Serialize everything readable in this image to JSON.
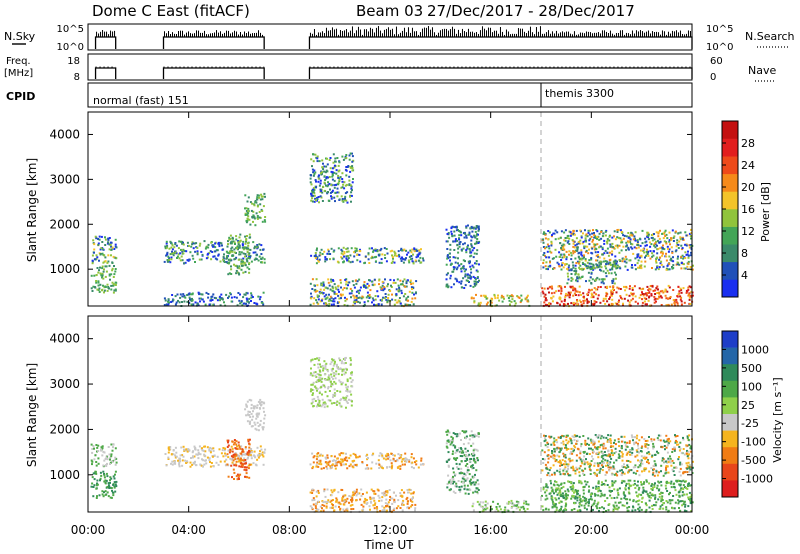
{
  "header": {
    "title": "Dome C East (fitACF)",
    "beam": "Beam 03",
    "date_range": "27/Dec/2017 - 28/Dec/2017"
  },
  "nsky_panel": {
    "left_label": "N.Sky",
    "left_ticks": [
      "10^5",
      "10^0"
    ],
    "right_label": "N.Search",
    "right_ticks": [
      "10^5",
      "10^0"
    ]
  },
  "freq_panel": {
    "left_label_1": "Freq.",
    "left_label_2": "[MHz]",
    "left_ticks": [
      "18",
      "8"
    ],
    "right_label": "Nave",
    "right_ticks": [
      "60",
      "0"
    ]
  },
  "cpid_panel": {
    "label": "CPID",
    "mode1": "normal (fast) 151",
    "mode2": "themis 3300",
    "mode_change_hour": 18.0
  },
  "chart_data": [
    {
      "type": "heatmap",
      "name": "power",
      "ylabel": "Slant Range [km]",
      "xlabel": "Time UT",
      "xlim_hours": [
        0,
        24
      ],
      "ylim": [
        180,
        4500
      ],
      "yticks": [
        "1000",
        "2000",
        "3000",
        "4000"
      ],
      "xticks": [
        "00:00",
        "04:00",
        "08:00",
        "12:00",
        "16:00",
        "20:00",
        "00:00"
      ],
      "colorbar": {
        "label": "Power [dB]",
        "ticks": [
          "4",
          "8",
          "12",
          "16",
          "20",
          "24",
          "28"
        ],
        "colors": [
          "#1a2ff0",
          "#2050b8",
          "#3a8a6a",
          "#43a557",
          "#90c43c",
          "#f3c42a",
          "#f58a1a",
          "#ee4a1a",
          "#e21e1e",
          "#c41010"
        ]
      },
      "scatter_regions": [
        {
          "t": [
            0.1,
            1.1
          ],
          "r": [
            1150,
            1750
          ],
          "palette": [
            0,
            1,
            2,
            3,
            4,
            5
          ]
        },
        {
          "t": [
            0.1,
            1.1
          ],
          "r": [
            500,
            1100
          ],
          "palette": [
            2,
            3,
            4
          ]
        },
        {
          "t": [
            3.0,
            7.0
          ],
          "r": [
            1150,
            1650
          ],
          "palette": [
            0,
            1,
            2,
            3,
            4
          ]
        },
        {
          "t": [
            3.0,
            7.0
          ],
          "r": [
            200,
            500
          ],
          "palette": [
            0,
            1,
            2,
            3
          ]
        },
        {
          "t": [
            6.2,
            7.0
          ],
          "r": [
            2000,
            2700
          ],
          "palette": [
            2,
            3,
            4
          ]
        },
        {
          "t": [
            5.5,
            6.4
          ],
          "r": [
            900,
            1800
          ],
          "palette": [
            2,
            3,
            4
          ]
        },
        {
          "t": [
            8.8,
            10.5
          ],
          "r": [
            2500,
            3600
          ],
          "palette": [
            0,
            1,
            2,
            3,
            4
          ]
        },
        {
          "t": [
            8.8,
            13.3
          ],
          "r": [
            1150,
            1500
          ],
          "palette": [
            0,
            1,
            2,
            3,
            4,
            5
          ]
        },
        {
          "t": [
            8.8,
            13.0
          ],
          "r": [
            200,
            800
          ],
          "palette": [
            0,
            1,
            2,
            3,
            4,
            5,
            6
          ]
        },
        {
          "t": [
            14.2,
            15.5
          ],
          "r": [
            600,
            2000
          ],
          "palette": [
            0,
            1,
            2,
            3
          ]
        },
        {
          "t": [
            15.2,
            17.5
          ],
          "r": [
            200,
            450
          ],
          "palette": [
            3,
            4,
            5,
            6
          ]
        },
        {
          "t": [
            18.0,
            24.0
          ],
          "r": [
            1000,
            1900
          ],
          "palette": [
            0,
            1,
            2,
            3,
            4,
            5,
            6
          ]
        },
        {
          "t": [
            18.0,
            24.0
          ],
          "r": [
            200,
            650
          ],
          "palette": [
            5,
            6,
            7,
            8,
            9
          ]
        },
        {
          "t": [
            19.0,
            21.0
          ],
          "r": [
            700,
            1200
          ],
          "palette": [
            1,
            2,
            3,
            4
          ]
        }
      ]
    },
    {
      "type": "heatmap",
      "name": "velocity",
      "ylabel": "Slant Range [km]",
      "xlabel": "Time UT",
      "xlim_hours": [
        0,
        24
      ],
      "ylim": [
        180,
        4500
      ],
      "yticks": [
        "1000",
        "2000",
        "3000",
        "4000"
      ],
      "xticks": [
        "00:00",
        "04:00",
        "08:00",
        "12:00",
        "16:00",
        "20:00",
        "00:00"
      ],
      "colorbar": {
        "label": "Velocity [m s⁻¹]",
        "ticks": [
          "1000",
          "500",
          "100",
          "25",
          "-25",
          "-100",
          "-500",
          "-1000"
        ],
        "colors": [
          "#1e3ec8",
          "#2466a8",
          "#2f8a5a",
          "#4ea847",
          "#8fd04a",
          "#c8c8c8",
          "#f5b41e",
          "#f07c14",
          "#e8461a",
          "#de1e1e"
        ]
      },
      "scatter_regions": [
        {
          "t": [
            0.1,
            1.1
          ],
          "r": [
            1200,
            1700
          ],
          "palette": [
            5,
            3
          ]
        },
        {
          "t": [
            0.1,
            1.1
          ],
          "r": [
            500,
            1100
          ],
          "palette": [
            2,
            3
          ]
        },
        {
          "t": [
            3.0,
            7.0
          ],
          "r": [
            1200,
            1650
          ],
          "palette": [
            5,
            5,
            6
          ]
        },
        {
          "t": [
            5.5,
            6.4
          ],
          "r": [
            900,
            1800
          ],
          "palette": [
            7,
            8
          ]
        },
        {
          "t": [
            6.2,
            7.0
          ],
          "r": [
            2000,
            2700
          ],
          "palette": [
            5
          ]
        },
        {
          "t": [
            8.8,
            10.5
          ],
          "r": [
            2500,
            3600
          ],
          "palette": [
            5,
            4
          ]
        },
        {
          "t": [
            8.8,
            13.3
          ],
          "r": [
            1150,
            1500
          ],
          "palette": [
            5,
            7,
            6
          ]
        },
        {
          "t": [
            8.8,
            13.0
          ],
          "r": [
            200,
            700
          ],
          "palette": [
            6,
            7,
            5
          ]
        },
        {
          "t": [
            14.2,
            15.5
          ],
          "r": [
            600,
            2000
          ],
          "palette": [
            2,
            3,
            5
          ]
        },
        {
          "t": [
            15.2,
            17.5
          ],
          "r": [
            200,
            450
          ],
          "palette": [
            3,
            4,
            5
          ]
        },
        {
          "t": [
            18.0,
            24.0
          ],
          "r": [
            1000,
            1900
          ],
          "palette": [
            5,
            6,
            7,
            2,
            3
          ]
        },
        {
          "t": [
            18.0,
            24.0
          ],
          "r": [
            200,
            900
          ],
          "palette": [
            3,
            4,
            3,
            2
          ]
        }
      ]
    }
  ]
}
